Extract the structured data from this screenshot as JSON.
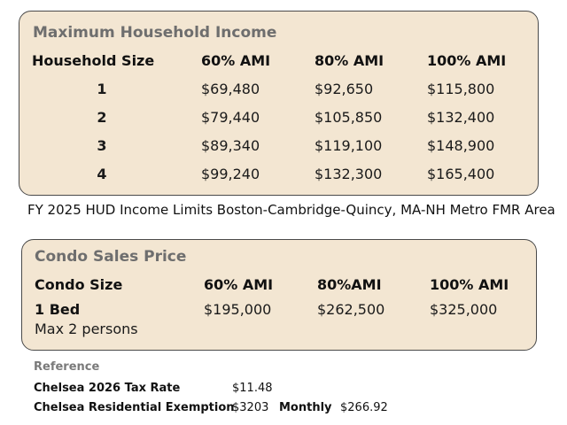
{
  "income_table": {
    "title": "Maximum Household Income",
    "headers": [
      "Household Size",
      "60% AMI",
      "80% AMI",
      "100% AMI"
    ],
    "rows": [
      [
        "1",
        "$69,480",
        "$92,650",
        "$115,800"
      ],
      [
        "2",
        "$79,440",
        "$105,850",
        "$132,400"
      ],
      [
        "3",
        "$89,340",
        "$119,100",
        "$148,900"
      ],
      [
        "4",
        "$99,240",
        "$132,300",
        "$165,400"
      ]
    ]
  },
  "source_caption": "FY 2025 HUD Income Limits Boston-Cambridge-Quincy, MA-NH Metro FMR Area",
  "condo_table": {
    "title": "Condo Sales Price",
    "headers": [
      "Condo Size",
      "60% AMI",
      "80%AMI",
      "100% AMI"
    ],
    "row": {
      "size": "1 Bed",
      "note": "Max 2 persons",
      "values": [
        "$195,000",
        "$262,500",
        "$325,000"
      ]
    }
  },
  "reference": {
    "title": "Reference",
    "tax_rate_label": "Chelsea 2026 Tax Rate",
    "tax_rate_value": "$11.48",
    "exemption_label": "Chelsea Residential Exemption",
    "exemption_value": "$3203",
    "monthly_label": "Monthly",
    "monthly_value": "$266.92"
  },
  "colors": {
    "card_background": "#f3e6d2",
    "card_border": "#4a4a4a",
    "title_gray": "#6e6e6e"
  }
}
